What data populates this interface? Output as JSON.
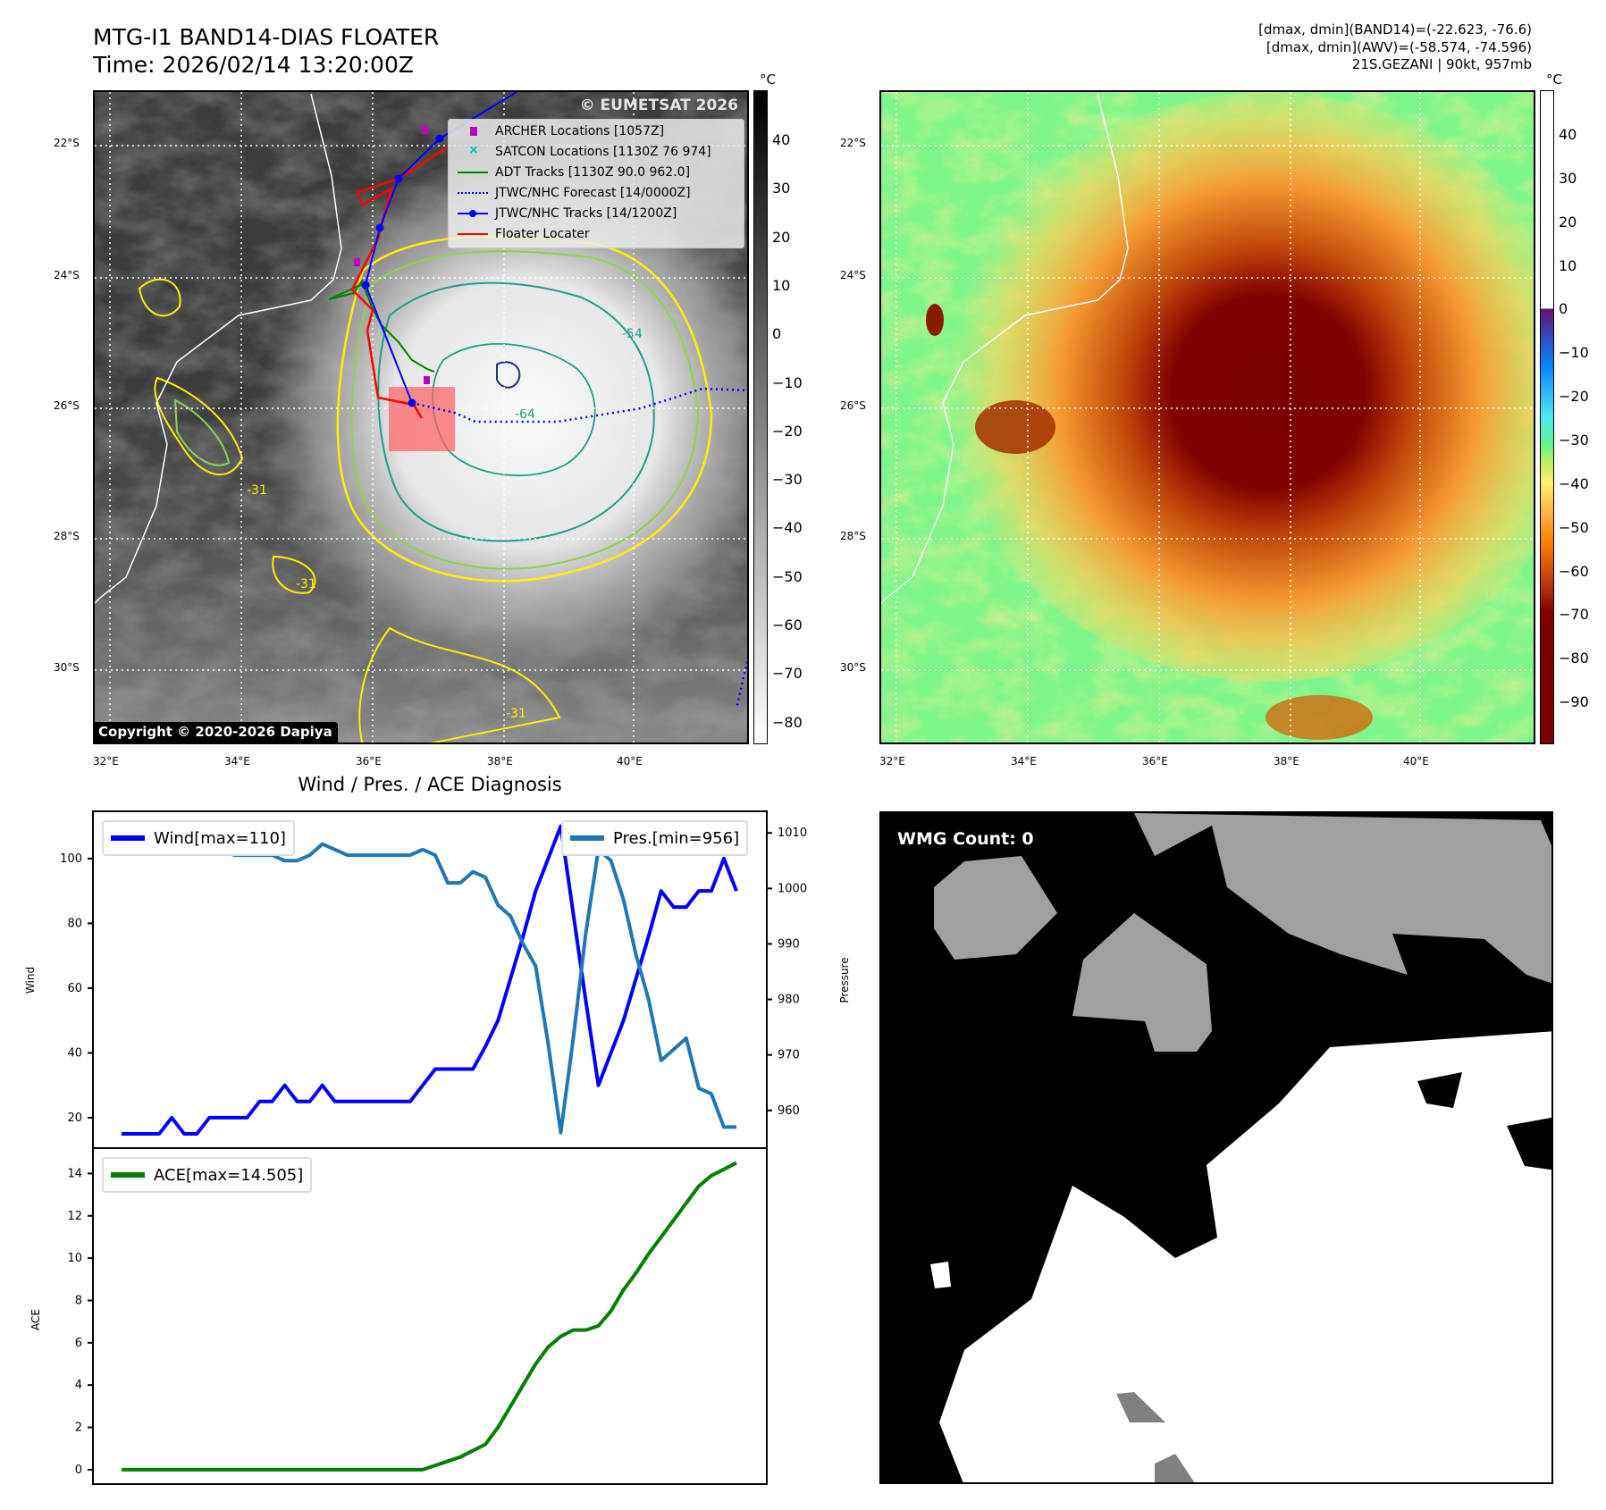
{
  "header": {
    "title_line1": "MTG-I1 BAND14-DIAS FLOATER",
    "title_line2": "Time: 2026/02/14 13:20:00Z",
    "info_line1": "[dmax, dmin](BAND14)=(-22.623, -76.6)",
    "info_line2": "[dmax, dmin](AWV)=(-58.574, -74.596)",
    "info_line3": "21S.GEZANI | 90kt, 957mb"
  },
  "maps": {
    "lat_labels": [
      "22°S",
      "24°S",
      "26°S",
      "28°S",
      "30°S"
    ],
    "lon_labels": [
      "32°E",
      "34°E",
      "36°E",
      "38°E",
      "40°E"
    ],
    "unit": "°C",
    "left_colorbar_ticks": [
      "40",
      "30",
      "20",
      "10",
      "0",
      "−10",
      "−20",
      "−30",
      "−40",
      "−50",
      "−60",
      "−70",
      "−80"
    ],
    "right_colorbar_ticks": [
      "40",
      "30",
      "20",
      "10",
      "0",
      "−10",
      "−20",
      "−30",
      "−40",
      "−50",
      "−60",
      "−70",
      "−80",
      "−90"
    ],
    "watermark": "© EUMETSAT 2026",
    "copyright": "Copyright © 2020-2026 Dapiya",
    "contour_labels": [
      "-31",
      "-54",
      "-64",
      "-31",
      "-31"
    ],
    "legend": [
      {
        "label": "ARCHER Locations [1057Z]",
        "color": "#c000c0"
      },
      {
        "label": "SATCON Locations [1130Z 76 974]",
        "color": "#00bfbf"
      },
      {
        "label": "ADT Tracks [1130Z 90.0 962.0]",
        "color": "#008000"
      },
      {
        "label": "JTWC/NHC Forecast [14/0000Z]",
        "color": "#0000ff"
      },
      {
        "label": "JTWC/NHC Tracks [14/1200Z]",
        "color": "#0000ff"
      },
      {
        "label": "Floater Locater",
        "color": "#ff0000"
      }
    ]
  },
  "wmg": {
    "label": "WMG Count: 0"
  },
  "chart_data": [
    {
      "type": "line",
      "title": "Wind / Pres. / ACE Diagnosis",
      "ylabel": "Wind",
      "y2label": "Pressure",
      "ylim": [
        10.6,
        114.6
      ],
      "y2lim": [
        953.2,
        1013.9
      ],
      "yticks": [
        20,
        40,
        60,
        80,
        100
      ],
      "y2ticks": [
        960,
        970,
        980,
        990,
        1000,
        1010
      ],
      "series": [
        {
          "name": "Wind[max=110]",
          "axis": "left",
          "color": "#0000ff",
          "values": [
            15,
            15,
            15,
            15,
            20,
            15,
            15,
            20,
            20,
            20,
            20,
            25,
            25,
            30,
            25,
            25,
            30,
            25,
            25,
            25,
            25,
            25,
            25,
            25,
            30,
            35,
            35,
            35,
            35,
            42,
            50,
            63,
            76,
            90,
            100,
            110,
            83,
            56,
            30,
            40,
            50,
            63,
            76,
            90,
            85,
            85,
            90,
            90,
            100,
            90
          ]
        },
        {
          "name": "Pres.[min=956]",
          "axis": "right",
          "color": "#1f77b4",
          "values": [
            1009,
            1011,
            1011,
            1011,
            1011,
            1011,
            1009,
            1007,
            1007,
            1006,
            1006,
            1006,
            1006,
            1005,
            1005,
            1006,
            1008,
            1007,
            1006,
            1006,
            1006,
            1006,
            1006,
            1006,
            1007,
            1006,
            1001,
            1001,
            1003,
            1002,
            997,
            995,
            990,
            986,
            972,
            956,
            973,
            992,
            1007,
            1005,
            998,
            988,
            980,
            969,
            971,
            973,
            964,
            963,
            957,
            957
          ]
        }
      ]
    },
    {
      "type": "line",
      "ylabel": "ACE",
      "ylim": [
        -0.68,
        15.2
      ],
      "yticks": [
        0,
        2,
        4,
        6,
        8,
        10,
        12,
        14
      ],
      "series": [
        {
          "name": "ACE[max=14.505]",
          "color": "#008000",
          "values": [
            0,
            0,
            0,
            0,
            0,
            0,
            0,
            0,
            0,
            0,
            0,
            0,
            0,
            0,
            0,
            0,
            0,
            0,
            0,
            0,
            0,
            0,
            0,
            0,
            0,
            0.2,
            0.4,
            0.6,
            0.9,
            1.2,
            2.0,
            3.0,
            4.0,
            5.0,
            5.8,
            6.3,
            6.6,
            6.6,
            6.8,
            7.5,
            8.5,
            9.3,
            10.2,
            11.0,
            11.8,
            12.6,
            13.4,
            13.9,
            14.2,
            14.505
          ]
        }
      ]
    }
  ]
}
